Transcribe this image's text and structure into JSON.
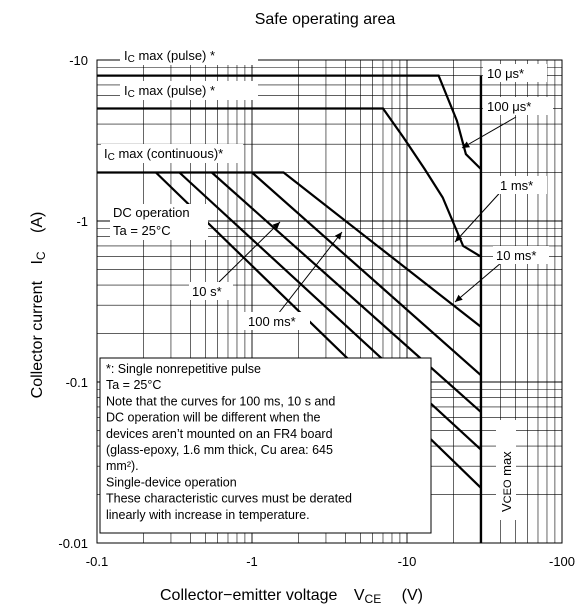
{
  "chart_data": {
    "type": "line",
    "title": "Safe operating area",
    "xlabel": "Collector−emitter voltage",
    "xlabel_symbol": "V",
    "xlabel_symbol_sub": "CE",
    "xlabel_unit": "(V)",
    "ylabel": "Collector current",
    "ylabel_symbol": "I",
    "ylabel_symbol_sub": "C",
    "ylabel_unit": "(A)",
    "x_scale": "log",
    "y_scale": "log",
    "xlim": [
      -0.1,
      -100
    ],
    "ylim": [
      -0.01,
      -10
    ],
    "x_ticks": [
      -0.1,
      -1,
      -10,
      -100
    ],
    "y_ticks": [
      -0.01,
      -0.1,
      -1,
      -10
    ],
    "x_tick_labels": [
      "-0.1",
      "-1",
      "-10",
      "-100"
    ],
    "y_tick_labels": [
      "-0.01",
      "-0.1",
      "-1",
      "-10"
    ],
    "grid": true,
    "series": [
      {
        "name": "10 μs*",
        "points": [
          [
            -0.1,
            -8
          ],
          [
            -16,
            -8
          ],
          [
            -21,
            -4.2
          ],
          [
            -24,
            -2.6
          ],
          [
            -30,
            -2.1
          ]
        ]
      },
      {
        "name": "100 μs*",
        "points": [
          [
            -0.1,
            -5
          ],
          [
            -7,
            -5
          ],
          [
            -9.5,
            -3.3
          ],
          [
            -13,
            -2.1
          ],
          [
            -17,
            -1.4
          ],
          [
            -23,
            -0.7
          ],
          [
            -30,
            -0.6
          ]
        ]
      },
      {
        "name": "1 ms*",
        "points": [
          [
            -0.1,
            -2
          ],
          [
            -1.6,
            -2
          ],
          [
            -30,
            -0.22
          ]
        ]
      },
      {
        "name": "10 ms*",
        "points": [
          [
            -1,
            -2
          ],
          [
            -30,
            -0.11
          ]
        ]
      },
      {
        "name": "100 ms*",
        "points": [
          [
            -0.55,
            -2
          ],
          [
            -30,
            -0.065
          ]
        ]
      },
      {
        "name": "10 s*",
        "points": [
          [
            -0.34,
            -2
          ],
          [
            -30,
            -0.038
          ]
        ]
      },
      {
        "name": "DC operation",
        "points": [
          [
            -0.24,
            -2
          ],
          [
            -30,
            -0.022
          ]
        ]
      }
    ],
    "vceo_max": -30,
    "annotations": {
      "ic_pulse_1_pre": "I",
      "ic_pulse_1_sub": "C",
      "ic_pulse_1_post": " max (pulse) *",
      "ic_pulse_2_pre": "I",
      "ic_pulse_2_sub": "C",
      "ic_pulse_2_post": " max (pulse) *",
      "ic_cont_pre": "I",
      "ic_cont_sub": "C",
      "ic_cont_post": " max (continuous)*",
      "dc_line1": "DC operation",
      "dc_line2": "Ta = 25°C",
      "label_10us": "10 μs*",
      "label_100us": "100 μs*",
      "label_1ms": "1 ms*",
      "label_10ms": "10 ms*",
      "label_100ms": "100 ms*",
      "label_10s": "10 s*",
      "vceo_pre": "V",
      "vceo_sub": "CEO",
      "vceo_post": " max"
    },
    "note_lines": [
      "*:  Single nonrepetitive pulse",
      "      Ta = 25°C",
      "Note that the curves for 100 ms, 10 s and",
      "DC operation will be different when the",
      "devices aren’t mounted on an FR4 board",
      "(glass-epoxy, 1.6 mm thick, Cu area: 645",
      "mm²).",
      "Single-device operation",
      "These characteristic curves must be derated",
      "linearly with increase in temperature."
    ]
  }
}
